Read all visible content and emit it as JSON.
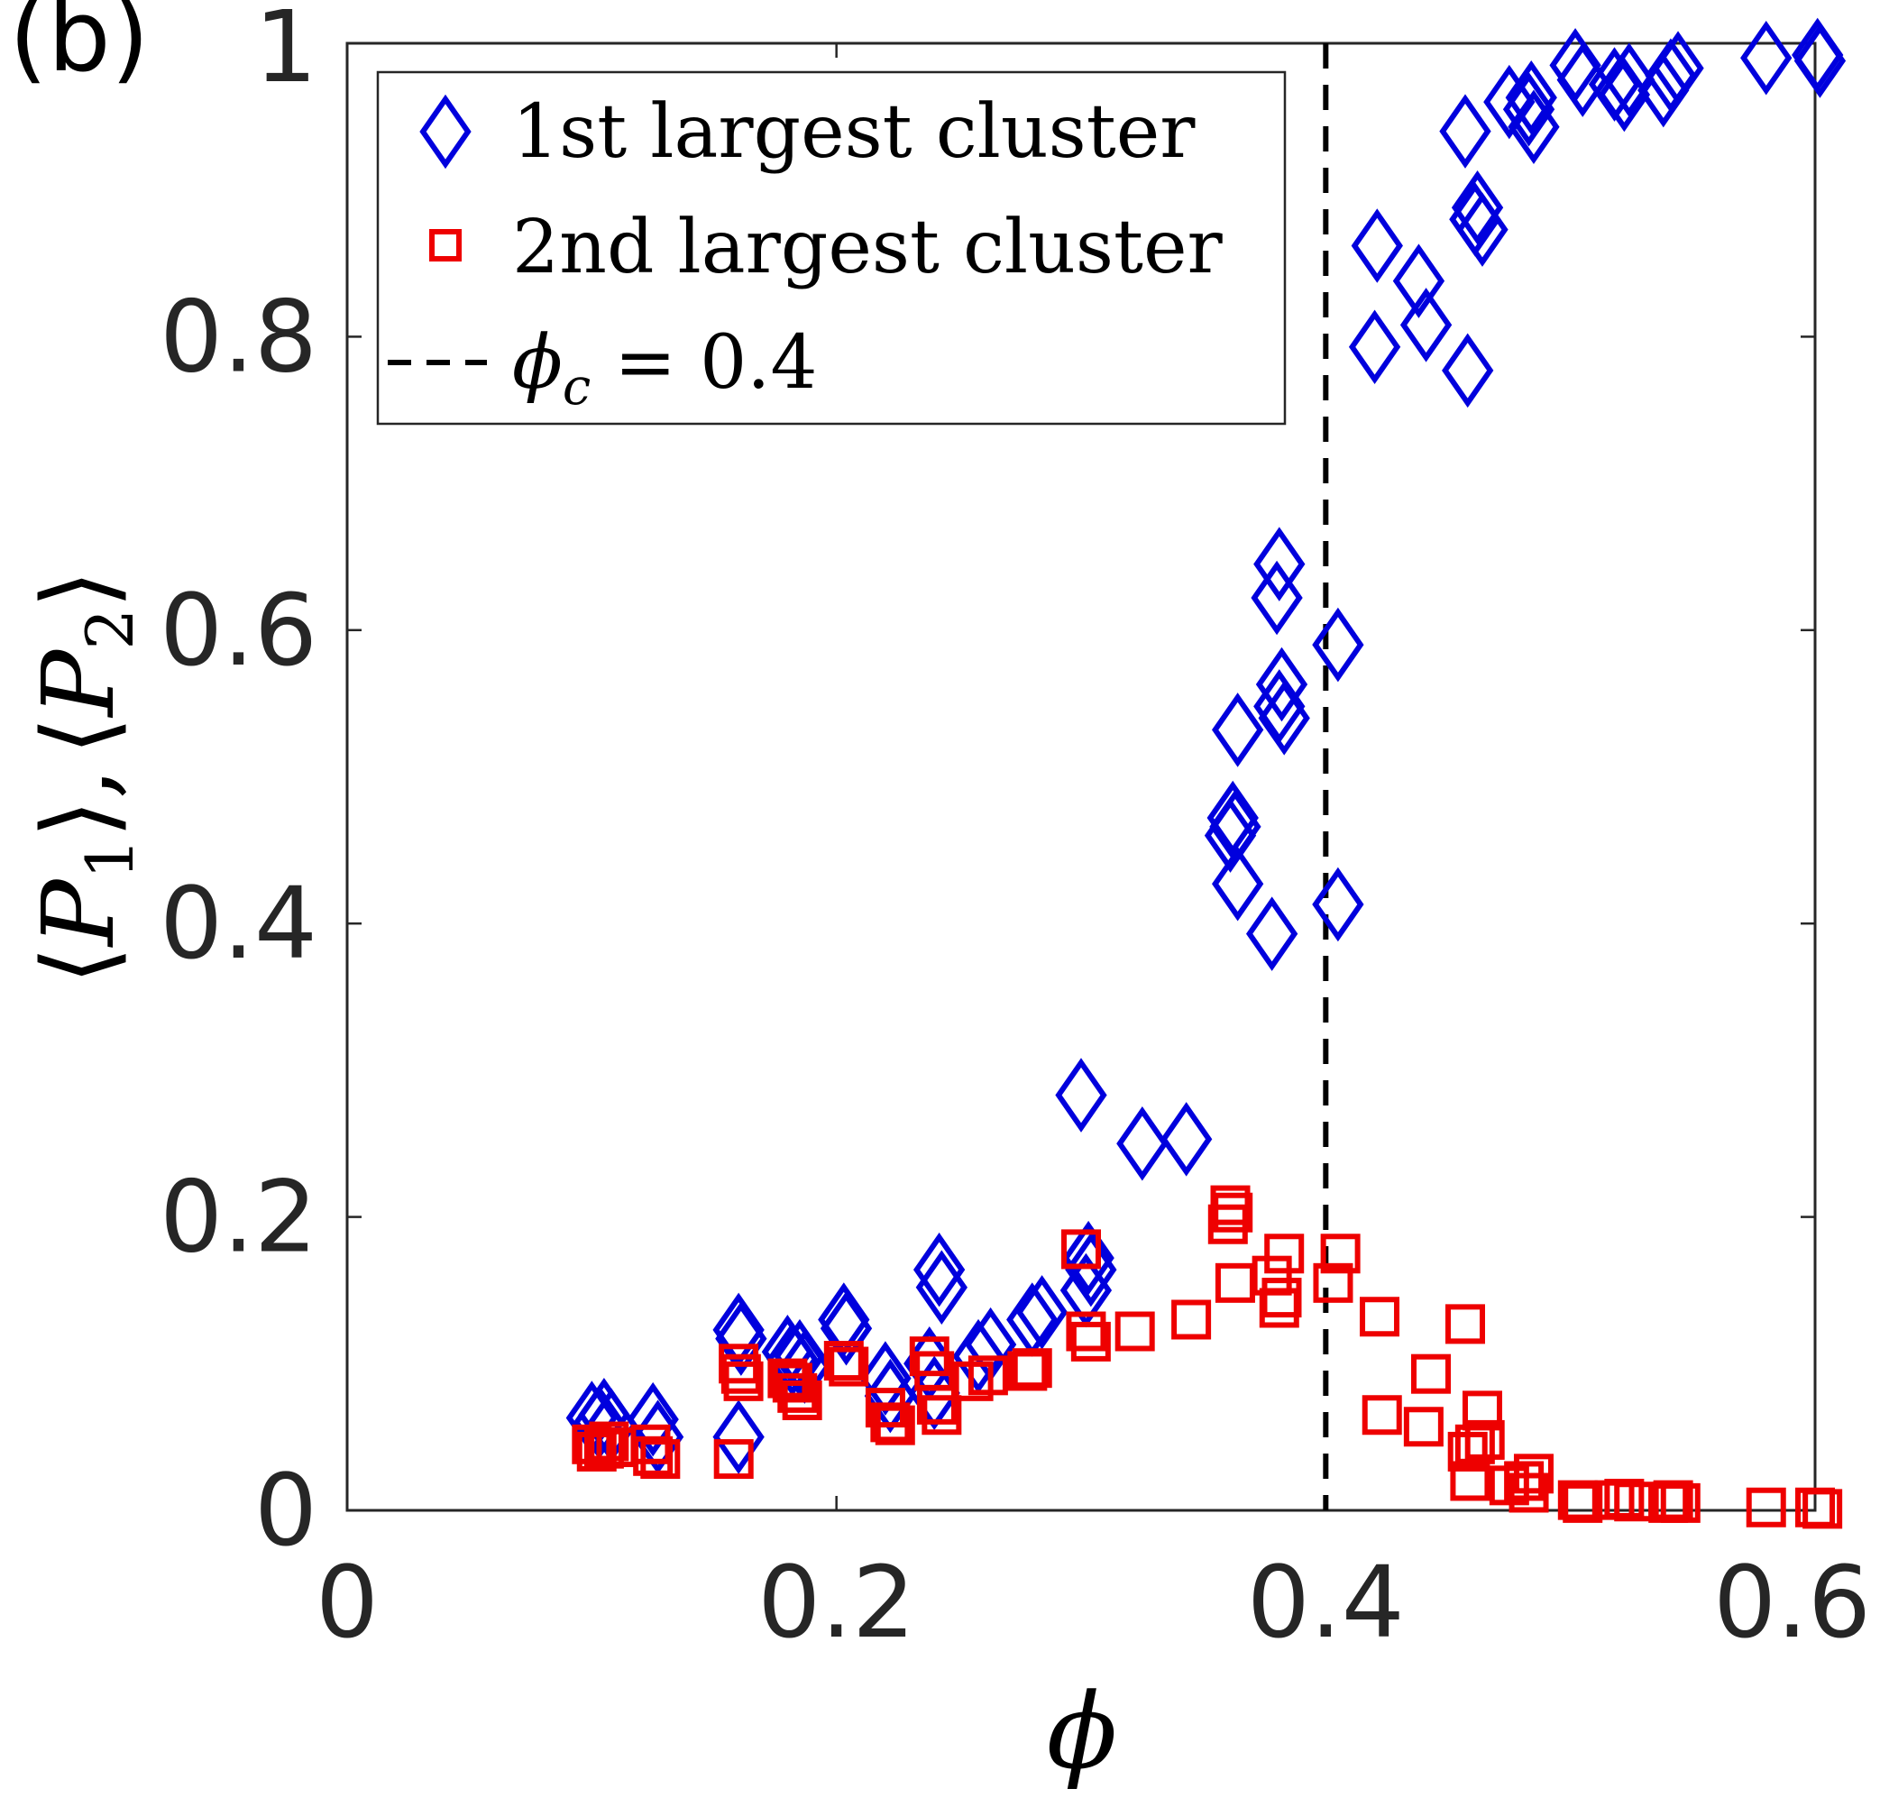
{
  "panel_label": "(b)",
  "chart_data": {
    "type": "scatter",
    "title": "",
    "xlabel": "ϕ",
    "ylabel": "⟨P1⟩, ⟨P2⟩",
    "xlim": [
      0,
      0.6
    ],
    "ylim": [
      0,
      1
    ],
    "x_ticks": [
      "0",
      "0.2",
      "0.4",
      "0.6"
    ],
    "y_ticks": [
      "0",
      "0.2",
      "0.4",
      "0.6",
      "0.8",
      "1"
    ],
    "x_tick_values": [
      0,
      0.2,
      0.4,
      0.6
    ],
    "y_tick_values": [
      0,
      0.2,
      0.4,
      0.6,
      0.8,
      1
    ],
    "grid": false,
    "legend_position": "top-left",
    "series": [
      {
        "name": "1st largest cluster",
        "marker": "diamond",
        "color": "#0000dd",
        "points": [
          [
            0.1,
            0.063
          ],
          [
            0.103,
            0.06
          ],
          [
            0.105,
            0.065
          ],
          [
            0.108,
            0.058
          ],
          [
            0.125,
            0.062
          ],
          [
            0.127,
            0.05
          ],
          [
            0.16,
            0.123
          ],
          [
            0.161,
            0.117
          ],
          [
            0.16,
            0.05
          ],
          [
            0.18,
            0.108
          ],
          [
            0.182,
            0.103
          ],
          [
            0.185,
            0.105
          ],
          [
            0.187,
            0.098
          ],
          [
            0.203,
            0.13
          ],
          [
            0.204,
            0.124
          ],
          [
            0.22,
            0.09
          ],
          [
            0.222,
            0.078
          ],
          [
            0.238,
            0.1
          ],
          [
            0.24,
            0.08
          ],
          [
            0.242,
            0.164
          ],
          [
            0.243,
            0.152
          ],
          [
            0.258,
            0.105
          ],
          [
            0.263,
            0.113
          ],
          [
            0.28,
            0.13
          ],
          [
            0.284,
            0.135
          ],
          [
            0.3,
            0.283
          ],
          [
            0.302,
            0.15
          ],
          [
            0.304,
            0.164
          ],
          [
            0.303,
            0.172
          ],
          [
            0.325,
            0.25
          ],
          [
            0.343,
            0.253
          ],
          [
            0.361,
            0.46
          ],
          [
            0.362,
            0.472
          ],
          [
            0.363,
            0.466
          ],
          [
            0.364,
            0.532
          ],
          [
            0.364,
            0.427
          ],
          [
            0.378,
            0.393
          ],
          [
            0.381,
            0.645
          ],
          [
            0.38,
            0.622
          ],
          [
            0.381,
            0.548
          ],
          [
            0.382,
            0.563
          ],
          [
            0.383,
            0.54
          ],
          [
            0.405,
            0.59
          ],
          [
            0.405,
            0.413
          ],
          [
            0.42,
            0.793
          ],
          [
            0.421,
            0.862
          ],
          [
            0.438,
            0.838
          ],
          [
            0.441,
            0.808
          ],
          [
            0.458,
            0.777
          ],
          [
            0.457,
            0.94
          ],
          [
            0.461,
            0.88
          ],
          [
            0.462,
            0.888
          ],
          [
            0.464,
            0.873
          ],
          [
            0.475,
            0.96
          ],
          [
            0.483,
            0.955
          ],
          [
            0.484,
            0.963
          ],
          [
            0.485,
            0.943
          ],
          [
            0.502,
            0.985
          ],
          [
            0.505,
            0.975
          ],
          [
            0.518,
            0.972
          ],
          [
            0.522,
            0.965
          ],
          [
            0.524,
            0.975
          ],
          [
            0.538,
            0.968
          ],
          [
            0.541,
            0.978
          ],
          [
            0.544,
            0.983
          ],
          [
            0.58,
            0.99
          ],
          [
            0.601,
            0.992
          ],
          [
            0.602,
            0.988
          ]
        ]
      },
      {
        "name": "2nd largest cluster",
        "marker": "square",
        "color": "#ee0000",
        "points": [
          [
            0.1,
            0.045
          ],
          [
            0.102,
            0.04
          ],
          [
            0.105,
            0.042
          ],
          [
            0.107,
            0.047
          ],
          [
            0.11,
            0.043
          ],
          [
            0.124,
            0.045
          ],
          [
            0.125,
            0.037
          ],
          [
            0.128,
            0.035
          ],
          [
            0.158,
            0.035
          ],
          [
            0.16,
            0.1
          ],
          [
            0.161,
            0.093
          ],
          [
            0.162,
            0.088
          ],
          [
            0.18,
            0.09
          ],
          [
            0.182,
            0.087
          ],
          [
            0.184,
            0.08
          ],
          [
            0.186,
            0.075
          ],
          [
            0.203,
            0.102
          ],
          [
            0.205,
            0.098
          ],
          [
            0.22,
            0.07
          ],
          [
            0.222,
            0.06
          ],
          [
            0.224,
            0.058
          ],
          [
            0.238,
            0.105
          ],
          [
            0.24,
            0.095
          ],
          [
            0.241,
            0.072
          ],
          [
            0.243,
            0.065
          ],
          [
            0.256,
            0.088
          ],
          [
            0.262,
            0.092
          ],
          [
            0.278,
            0.095
          ],
          [
            0.28,
            0.097
          ],
          [
            0.3,
            0.178
          ],
          [
            0.302,
            0.122
          ],
          [
            0.304,
            0.115
          ],
          [
            0.322,
            0.122
          ],
          [
            0.345,
            0.13
          ],
          [
            0.36,
            0.195
          ],
          [
            0.361,
            0.208
          ],
          [
            0.362,
            0.203
          ],
          [
            0.363,
            0.155
          ],
          [
            0.378,
            0.16
          ],
          [
            0.381,
            0.138
          ],
          [
            0.382,
            0.145
          ],
          [
            0.383,
            0.175
          ],
          [
            0.403,
            0.155
          ],
          [
            0.406,
            0.175
          ],
          [
            0.422,
            0.132
          ],
          [
            0.423,
            0.065
          ],
          [
            0.44,
            0.057
          ],
          [
            0.443,
            0.093
          ],
          [
            0.457,
            0.127
          ],
          [
            0.458,
            0.04
          ],
          [
            0.459,
            0.02
          ],
          [
            0.461,
            0.045
          ],
          [
            0.464,
            0.068
          ],
          [
            0.465,
            0.048
          ],
          [
            0.475,
            0.017
          ],
          [
            0.481,
            0.02
          ],
          [
            0.483,
            0.012
          ],
          [
            0.485,
            0.025
          ],
          [
            0.503,
            0.007
          ],
          [
            0.505,
            0.005
          ],
          [
            0.518,
            0.007
          ],
          [
            0.522,
            0.008
          ],
          [
            0.526,
            0.006
          ],
          [
            0.54,
            0.005
          ],
          [
            0.542,
            0.007
          ],
          [
            0.545,
            0.005
          ],
          [
            0.58,
            0.002
          ],
          [
            0.6,
            0.002
          ],
          [
            0.603,
            0.001
          ]
        ]
      }
    ],
    "reference_line": {
      "name": "ϕc = 0.4",
      "x": 0.4,
      "style": "dashed",
      "color": "#000000"
    }
  },
  "legend": {
    "items": [
      {
        "label": "1st largest cluster",
        "marker": "diamond"
      },
      {
        "label": "2nd largest cluster",
        "marker": "square"
      },
      {
        "label_math": "ϕ",
        "label_sub": "c",
        "label_rest": " = 0.4",
        "marker": "dashed-line"
      }
    ]
  },
  "ylabel_parts": {
    "open1": "⟨",
    "p1": "P",
    "sub1": "1",
    "close1": "⟩",
    "comma": ",",
    "open2": "⟨",
    "p2": "P",
    "sub2": "2",
    "close2": "⟩"
  },
  "xlabel_symbol": "ϕ"
}
